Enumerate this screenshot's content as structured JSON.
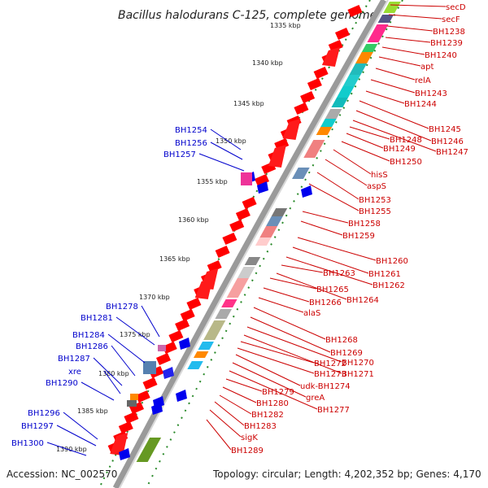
{
  "title": "Bacillus halodurans C-125, complete genome",
  "accession": "Accession: NC_002570",
  "topology": "Topology: circular; Length: 4,202,352 bp; Genes: 4,170",
  "kbp_ticks": [
    "1335 kbp",
    "1340 kbp",
    "1345 kbp",
    "1350 kbp",
    "1355 kbp",
    "1360 kbp",
    "1365 kbp",
    "1370 kbp",
    "1375 kbp",
    "1380 kbp",
    "1385 kbp",
    "1390 kbp"
  ],
  "blue_labels": [
    "BH1254",
    "BH1256",
    "BH1257",
    "BH1278",
    "BH1281",
    "BH1284",
    "BH1286",
    "BH1287",
    "xre",
    "BH1290",
    "BH1296",
    "BH1297",
    "BH1300"
  ],
  "red_labels": [
    "secD",
    "secF",
    "BH1238",
    "BH1239",
    "BH1240",
    "apt",
    "relA",
    "BH1243",
    "BH1244",
    "BH1245",
    "BH1246",
    "BH1247",
    "BH1248",
    "BH1249",
    "BH1250",
    "hisS",
    "aspS",
    "BH1253",
    "BH1255",
    "BH1258",
    "BH1259",
    "BH1260",
    "BH1261",
    "BH1262",
    "BH1263",
    "BH1264",
    "BH1265",
    "BH1266",
    "alaS",
    "BH1268",
    "BH1269",
    "BH1270",
    "BH1271",
    "BH1272",
    "BH1273",
    "udk-BH1274",
    "greA",
    "BH1277",
    "BH1279",
    "BH1280",
    "BH1282",
    "BH1283",
    "sigK",
    "BH1289"
  ],
  "colors": {
    "forward_gene": "#ff0000",
    "reverse_gene": "#0000ff",
    "backbone": "#888888",
    "tick_dots": "#2a8a2a"
  }
}
